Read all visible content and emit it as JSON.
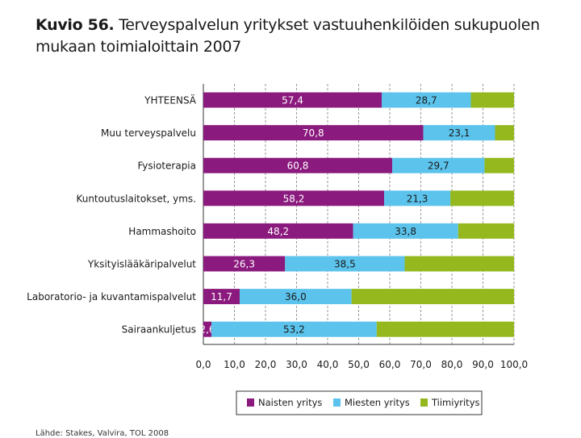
{
  "title": {
    "prefix": "Kuvio 56.",
    "text": "Terveyspalvelun yritykset vastuuhenkilöiden sukupuolen mukaan toimialoittain 2007"
  },
  "source_text": "Lähde: Stakes, Valvira, TOL 2008",
  "chart_data": {
    "type": "bar",
    "orientation": "horizontal",
    "stacked": true,
    "categories": [
      "YHTEENSÄ",
      "Muu terveyspalvelu",
      "Fysioterapia",
      "Kuntoutuslaitokset, yms.",
      "Hammashoito",
      "Yksityislääkäripalvelut",
      "Laboratorio- ja kuvantamispalvelut",
      "Sairaankuljetus"
    ],
    "series": [
      {
        "name": "Naisten yritys",
        "color": "#8b1a7e",
        "label_color": "#ffffff",
        "values": [
          57.4,
          70.8,
          60.8,
          58.2,
          48.2,
          26.3,
          11.7,
          2.6
        ],
        "labels": [
          "57,4",
          "70,8",
          "60,8",
          "58,2",
          "48,2",
          "26,3",
          "11,7",
          "2,6"
        ]
      },
      {
        "name": "Miesten yritys",
        "color": "#5bc3ec",
        "label_color": "#1a1a1a",
        "values": [
          28.7,
          23.1,
          29.7,
          21.3,
          33.8,
          38.5,
          36.0,
          53.2
        ],
        "labels": [
          "28,7",
          "23,1",
          "29,7",
          "21,3",
          "33,8",
          "38,5",
          "36,0",
          "53,2"
        ]
      },
      {
        "name": "Tiimiyritys",
        "color": "#94b81e",
        "label_color": "#1a1a1a",
        "values": [
          13.9,
          6.1,
          9.5,
          20.5,
          18.0,
          35.2,
          52.3,
          44.2
        ],
        "labels": []
      }
    ],
    "xlim": [
      0,
      100
    ],
    "xticks": [
      "0,0",
      "10,0",
      "20,0",
      "30,0",
      "40,0",
      "50,0",
      "60,0",
      "70,0",
      "80,0",
      "90,0",
      "100,0"
    ],
    "grid": true,
    "legend": "bottom"
  }
}
